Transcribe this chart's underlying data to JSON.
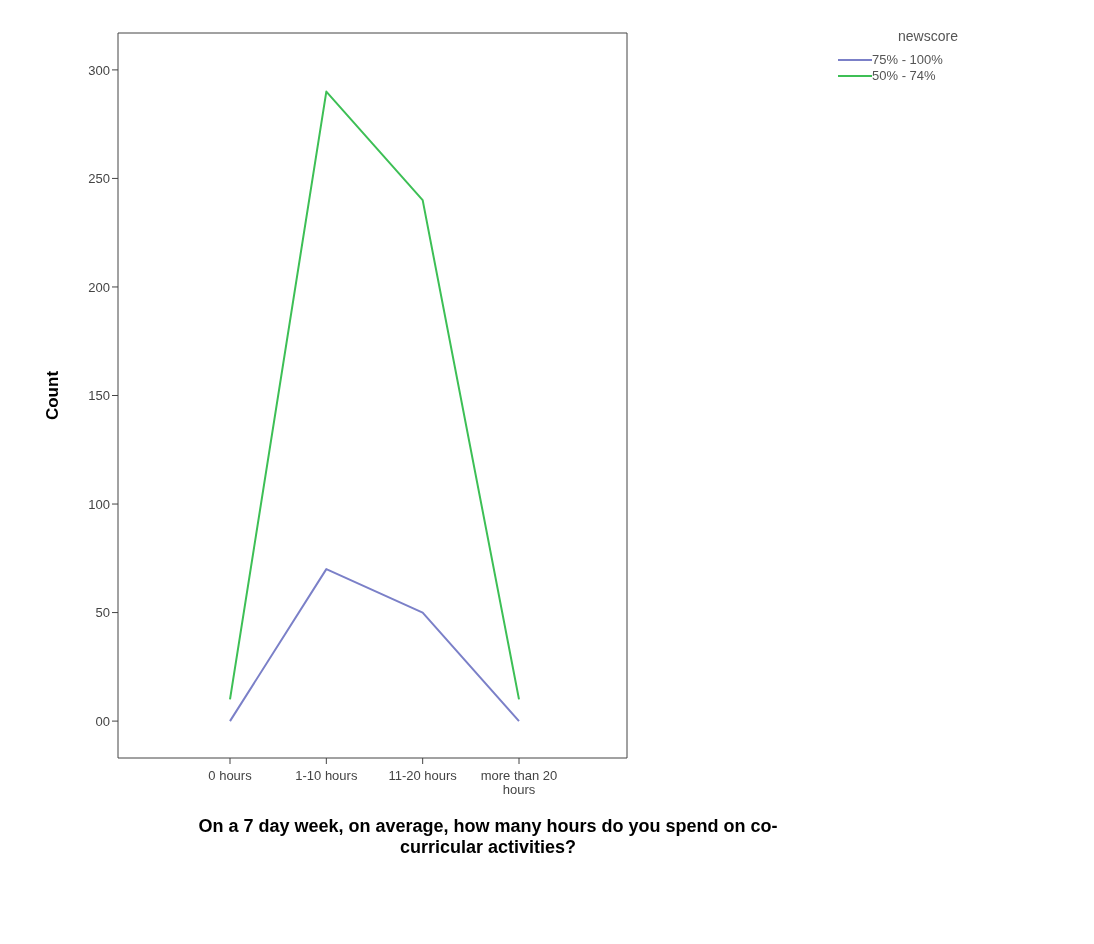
{
  "chart_data": {
    "type": "line",
    "categories": [
      "0 hours",
      "1-10 hours",
      "11-20 hours",
      "more than 20 hours"
    ],
    "series": [
      {
        "name": "75% - 100%",
        "color": "#7b80c8",
        "values": [
          0,
          70,
          50,
          0
        ]
      },
      {
        "name": "50% - 74%",
        "color": "#3dbf55",
        "values": [
          10,
          290,
          240,
          10
        ]
      }
    ],
    "xlabel": "On a 7 day week, on average, how many hours do you spend on co-curricular activities?",
    "ylabel": "Count",
    "legend_title": "newscore",
    "legend": "top right",
    "ylim": [
      -17,
      317
    ],
    "yticks": [
      {
        "value": 0,
        "label": "00"
      },
      50,
      100,
      150,
      200,
      250,
      300
    ],
    "grid": false,
    "marker": "none",
    "line_style": "solid"
  }
}
